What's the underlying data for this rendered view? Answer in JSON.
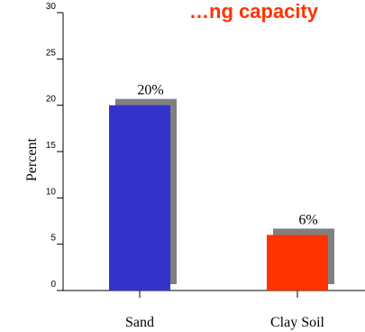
{
  "chart_data": {
    "type": "bar",
    "title": "…ng capacity",
    "ylabel": "Percent",
    "xlabel": "",
    "ylim": [
      0,
      30
    ],
    "yticks": [
      0,
      5,
      10,
      15,
      20,
      25,
      30
    ],
    "categories": [
      "Sand",
      "Clay Soil"
    ],
    "values": [
      20,
      6
    ],
    "data_labels": [
      "20%",
      "6%"
    ],
    "colors": [
      "#3333CC",
      "#FF3300"
    ],
    "shadow_color": "#808080",
    "title_color": "#FF3300",
    "grid": false,
    "legend": "none"
  }
}
